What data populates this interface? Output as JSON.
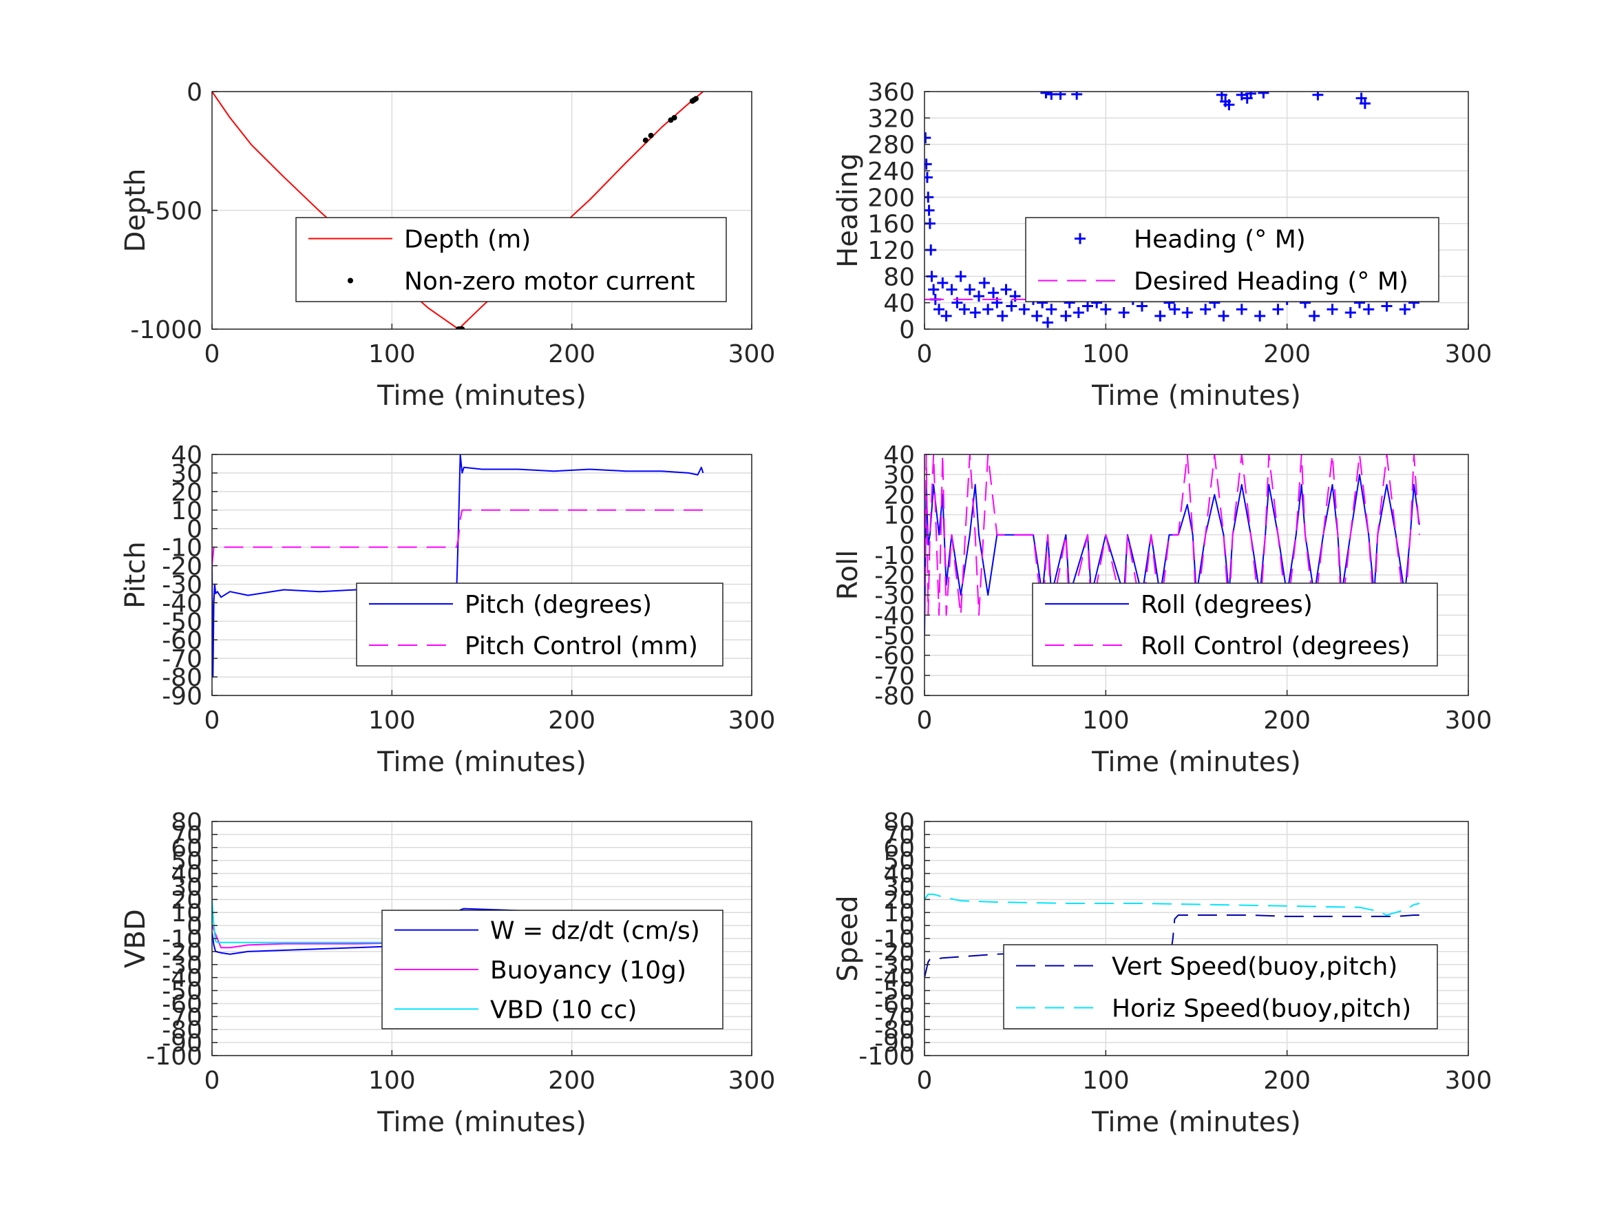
{
  "chart_data": [
    {
      "type": "line",
      "ylabel": "Depth",
      "xlabel": "Time (minutes)",
      "xlim": [
        0,
        300
      ],
      "ylim": [
        -1000,
        0
      ],
      "xticks": [
        0,
        100,
        200,
        300
      ],
      "yticks": [
        -1000,
        -500,
        0
      ],
      "ytick_labels": [
        "-1000",
        "-500",
        "0"
      ],
      "grid": true,
      "legend": "lower-right",
      "series": [
        {
          "name": "Depth (m)",
          "style": "solid",
          "color": "#ff0000",
          "x": [
            0,
            10,
            22,
            40,
            60,
            80,
            100,
            120,
            137,
            150,
            170,
            190,
            210,
            230,
            250,
            265,
            273
          ],
          "y": [
            0,
            -110,
            -225,
            -360,
            -505,
            -640,
            -775,
            -910,
            -1000,
            -905,
            -765,
            -595,
            -455,
            -300,
            -150,
            -50,
            0
          ]
        },
        {
          "name": "Non-zero motor current",
          "style": "dots",
          "color": "#000000",
          "x": [
            137,
            138,
            138.5,
            139,
            241,
            244,
            255,
            257,
            267,
            268,
            269
          ],
          "y": [
            -1000,
            -1000,
            -1000,
            -1000,
            -205,
            -185,
            -120,
            -110,
            -40,
            -35,
            -30
          ]
        }
      ]
    },
    {
      "type": "scatter",
      "ylabel": "Heading",
      "xlabel": "Time (minutes)",
      "xlim": [
        0,
        300
      ],
      "ylim": [
        0,
        360
      ],
      "xticks": [
        0,
        100,
        200,
        300
      ],
      "yticks": [
        0,
        40,
        80,
        120,
        160,
        200,
        240,
        280,
        320,
        360
      ],
      "ytick_labels": [
        "0",
        "40",
        "80",
        "120",
        "160",
        "200",
        "240",
        "280",
        "320",
        "360"
      ],
      "grid": true,
      "legend": "upper-right",
      "series": [
        {
          "name": "Heading (° M)",
          "style": "plus",
          "color": "#0000ff",
          "x": [
            0.5,
            1,
            1.5,
            2,
            2.5,
            3,
            3.5,
            4,
            5,
            6,
            8,
            10,
            12,
            15,
            18,
            20,
            22,
            25,
            28,
            30,
            33,
            35,
            38,
            40,
            43,
            45,
            48,
            50,
            55,
            60,
            62,
            65,
            68,
            70,
            75,
            78,
            80,
            85,
            88,
            90,
            95,
            100,
            105,
            110,
            115,
            120,
            125,
            130,
            135,
            138,
            140,
            145,
            150,
            155,
            160,
            163,
            165,
            170,
            175,
            180,
            185,
            190,
            195,
            200,
            205,
            210,
            213,
            215,
            220,
            225,
            230,
            235,
            240,
            242,
            245,
            250,
            255,
            260,
            265,
            270,
            272,
            67,
            70,
            75,
            84,
            164,
            166,
            168,
            175,
            178,
            180,
            187,
            217,
            241,
            243
          ],
          "y": [
            290,
            250,
            230,
            200,
            180,
            160,
            120,
            80,
            60,
            45,
            30,
            70,
            20,
            60,
            40,
            80,
            30,
            60,
            25,
            50,
            70,
            30,
            55,
            40,
            20,
            60,
            35,
            50,
            30,
            45,
            20,
            40,
            10,
            30,
            50,
            20,
            40,
            25,
            50,
            35,
            40,
            30,
            55,
            25,
            45,
            35,
            60,
            20,
            40,
            30,
            50,
            25,
            60,
            30,
            40,
            80,
            20,
            50,
            30,
            90,
            20,
            60,
            30,
            45,
            110,
            40,
            130,
            20,
            50,
            30,
            60,
            25,
            40,
            100,
            30,
            55,
            35,
            60,
            30,
            40,
            50,
            358,
            356,
            356,
            356,
            355,
            345,
            340,
            355,
            350,
            357,
            358,
            355,
            350,
            342
          ]
        },
        {
          "name": "Desired Heading (° M)",
          "style": "dashed",
          "color": "#ff00ff",
          "x": [
            0,
            273
          ],
          "y": [
            45,
            45
          ]
        }
      ]
    },
    {
      "type": "line",
      "ylabel": "Pitch",
      "xlabel": "Time (minutes)",
      "xlim": [
        0,
        300
      ],
      "ylim": [
        -90,
        40
      ],
      "xticks": [
        0,
        100,
        200,
        300
      ],
      "yticks": [
        -90,
        -80,
        -70,
        -60,
        -50,
        -40,
        -30,
        -20,
        -10,
        0,
        10,
        20,
        30,
        40
      ],
      "ytick_labels": [
        "-90",
        "-80",
        "-70",
        "-60",
        "-50",
        "-40",
        "-30",
        "-20",
        "-10",
        "0",
        "10",
        "20",
        "30",
        "40"
      ],
      "grid": true,
      "legend": "lower-right",
      "series": [
        {
          "name": "Pitch (degrees)",
          "style": "solid",
          "color": "#0000ff",
          "x": [
            0,
            0.5,
            1,
            1.5,
            2,
            3,
            5,
            10,
            20,
            40,
            60,
            80,
            100,
            120,
            136,
            137,
            138,
            139,
            140,
            150,
            170,
            190,
            210,
            230,
            250,
            265,
            270,
            272,
            273
          ],
          "y": [
            -20,
            -80,
            -40,
            -30,
            -35,
            -34,
            -37,
            -34,
            -36,
            -33,
            -34,
            -33,
            -33,
            -32,
            -32,
            0,
            40,
            30,
            33,
            32,
            32,
            31,
            32,
            31,
            31,
            30,
            29,
            33,
            30
          ]
        },
        {
          "name": "Pitch Control (mm)",
          "style": "dashed",
          "color": "#ff00ff",
          "x": [
            0,
            1,
            2,
            3,
            5,
            20,
            60,
            100,
            136,
            137,
            138,
            139,
            140,
            160,
            200,
            240,
            273
          ],
          "y": [
            -20,
            -10,
            -10,
            -10,
            -10,
            -10,
            -10,
            -10,
            -10,
            -5,
            5,
            10,
            10,
            10,
            10,
            10,
            10
          ]
        }
      ]
    },
    {
      "type": "line",
      "ylabel": "Roll",
      "xlabel": "Time (minutes)",
      "xlim": [
        0,
        300
      ],
      "ylim": [
        -80,
        40
      ],
      "xticks": [
        0,
        100,
        200,
        300
      ],
      "yticks": [
        -80,
        -70,
        -60,
        -50,
        -40,
        -30,
        -20,
        -10,
        0,
        10,
        20,
        30,
        40
      ],
      "ytick_labels": [
        "-80",
        "-70",
        "-60",
        "-50",
        "-40",
        "-30",
        "-20",
        "-10",
        "0",
        "10",
        "20",
        "30",
        "40"
      ],
      "grid": true,
      "legend": "lower-right",
      "series": [
        {
          "name": "Roll (degrees)",
          "style": "solid",
          "color": "#0000ff",
          "x": [
            0,
            1,
            2,
            3,
            5,
            8,
            10,
            12,
            15,
            20,
            25,
            28,
            30,
            35,
            40,
            45,
            50,
            60,
            65,
            68,
            70,
            78,
            80,
            90,
            92,
            100,
            110,
            112,
            120,
            125,
            130,
            135,
            140,
            145,
            148,
            150,
            155,
            160,
            165,
            168,
            170,
            175,
            180,
            185,
            188,
            190,
            195,
            200,
            205,
            208,
            210,
            215,
            220,
            225,
            228,
            230,
            235,
            240,
            245,
            248,
            250,
            255,
            260,
            265,
            268,
            270,
            273
          ],
          "y": [
            -50,
            25,
            -5,
            0,
            25,
            0,
            20,
            -25,
            0,
            -30,
            0,
            25,
            0,
            -30,
            0,
            0,
            0,
            0,
            -30,
            0,
            -30,
            0,
            -30,
            0,
            -30,
            0,
            -30,
            0,
            -30,
            0,
            -30,
            0,
            0,
            15,
            0,
            -30,
            0,
            20,
            0,
            -30,
            0,
            25,
            0,
            -30,
            0,
            25,
            0,
            -30,
            0,
            25,
            0,
            -30,
            0,
            25,
            0,
            -30,
            0,
            30,
            0,
            -30,
            0,
            25,
            0,
            -30,
            0,
            25,
            5
          ]
        },
        {
          "name": "Roll Control (degrees)",
          "style": "dashed",
          "color": "#ff00ff",
          "x": [
            0,
            1,
            2,
            3,
            5,
            8,
            10,
            12,
            15,
            20,
            25,
            28,
            30,
            35,
            40,
            45,
            50,
            60,
            65,
            68,
            70,
            78,
            80,
            90,
            92,
            100,
            110,
            112,
            120,
            125,
            130,
            135,
            140,
            145,
            148,
            150,
            155,
            160,
            165,
            168,
            170,
            175,
            180,
            185,
            188,
            190,
            195,
            200,
            205,
            208,
            210,
            215,
            220,
            225,
            228,
            230,
            235,
            240,
            245,
            248,
            250,
            255,
            260,
            265,
            268,
            270,
            273
          ],
          "y": [
            -40,
            40,
            -40,
            0,
            40,
            -40,
            40,
            -40,
            0,
            -40,
            40,
            0,
            -40,
            40,
            0,
            0,
            0,
            0,
            -40,
            0,
            -40,
            0,
            -40,
            0,
            -40,
            0,
            -40,
            0,
            -40,
            0,
            -40,
            0,
            0,
            40,
            0,
            -40,
            0,
            40,
            0,
            -40,
            0,
            40,
            0,
            -40,
            0,
            40,
            0,
            -40,
            0,
            40,
            0,
            -40,
            0,
            40,
            0,
            -40,
            0,
            40,
            0,
            -40,
            0,
            40,
            0,
            -40,
            0,
            40,
            0
          ]
        }
      ]
    },
    {
      "type": "line",
      "ylabel": "VBD",
      "xlabel": "Time (minutes)",
      "xlim": [
        0,
        300
      ],
      "ylim": [
        -100,
        80
      ],
      "xticks": [
        0,
        100,
        200,
        300
      ],
      "yticks": [
        -100,
        -90,
        -80,
        -70,
        -60,
        -50,
        -40,
        -30,
        -20,
        -10,
        0,
        10,
        20,
        30,
        40,
        50,
        60,
        70,
        80
      ],
      "ytick_labels": [
        "-100",
        "-90",
        "-80",
        "-70",
        "-60",
        "-50",
        "-40",
        "-30",
        "-20",
        "-10",
        "0",
        "10",
        "20",
        "30",
        "40",
        "50",
        "60",
        "70",
        "80"
      ],
      "grid": true,
      "legend": "lower-right",
      "series": [
        {
          "name": "W = dz/dt (cm/s)",
          "style": "solid",
          "color": "#0000ff",
          "x": [
            0,
            1,
            2,
            5,
            10,
            20,
            40,
            60,
            80,
            100,
            120,
            136,
            137,
            138,
            140,
            160,
            180,
            200,
            220,
            240,
            260,
            273
          ],
          "y": [
            -5,
            -15,
            -20,
            -21,
            -22,
            -20,
            -19,
            -18,
            -17,
            -16,
            -15,
            -16,
            -12,
            12,
            13,
            12,
            11,
            10,
            10,
            9,
            9,
            9
          ]
        },
        {
          "name": "Buoyancy (10g)",
          "style": "solid",
          "color": "#ff00ff",
          "x": [
            0,
            5,
            10,
            20,
            40,
            80,
            120,
            136,
            138,
            140,
            180,
            220,
            240,
            250,
            260,
            273
          ],
          "y": [
            0,
            -17,
            -17,
            -15,
            -14,
            -14,
            -13,
            -13,
            3,
            3,
            3,
            2,
            1,
            0,
            1,
            3
          ]
        },
        {
          "name": "VBD (10 cc)",
          "style": "solid",
          "color": "#00e5ff",
          "x": [
            0,
            1,
            2,
            3,
            10,
            60,
            120,
            136,
            137,
            138,
            180,
            220,
            260,
            273
          ],
          "y": [
            20,
            0,
            -12,
            -13,
            -13,
            -13,
            -13,
            -13,
            -5,
            4,
            4,
            4,
            5,
            6
          ]
        }
      ]
    },
    {
      "type": "line",
      "ylabel": "Speed",
      "xlabel": "Time (minutes)",
      "xlim": [
        0,
        300
      ],
      "ylim": [
        -100,
        80
      ],
      "xticks": [
        0,
        100,
        200,
        300
      ],
      "yticks": [
        -100,
        -90,
        -80,
        -70,
        -60,
        -50,
        -40,
        -30,
        -20,
        -10,
        0,
        10,
        20,
        30,
        40,
        50,
        60,
        70,
        80
      ],
      "ytick_labels": [
        "-100",
        "-90",
        "-80",
        "-70",
        "-60",
        "-50",
        "-40",
        "-30",
        "-20",
        "-10",
        "0",
        "10",
        "20",
        "30",
        "40",
        "50",
        "60",
        "70",
        "80"
      ],
      "grid": true,
      "legend": "lower-right",
      "series": [
        {
          "name": "Vert Speed(buoy,pitch)",
          "style": "dashed",
          "color": "#0000aa",
          "x": [
            0,
            2,
            3,
            5,
            10,
            20,
            40,
            60,
            80,
            100,
            120,
            136,
            137,
            138,
            140,
            160,
            180,
            200,
            220,
            240,
            260,
            270,
            273
          ],
          "y": [
            -40,
            -28,
            -26,
            -26,
            -25,
            -24,
            -22,
            -21,
            -21,
            -20,
            -20,
            -20,
            -10,
            5,
            8,
            8,
            8,
            7,
            7,
            7,
            7,
            8,
            8
          ]
        },
        {
          "name": "Horiz Speed(buoy,pitch)",
          "style": "dashed",
          "color": "#00e5ff",
          "x": [
            0,
            2,
            5,
            10,
            20,
            40,
            80,
            120,
            160,
            200,
            240,
            250,
            255,
            260,
            265,
            270,
            273
          ],
          "y": [
            20,
            24,
            24,
            22,
            19,
            18,
            17,
            17,
            16,
            15,
            14,
            11,
            8,
            10,
            12,
            16,
            17
          ]
        }
      ]
    }
  ]
}
